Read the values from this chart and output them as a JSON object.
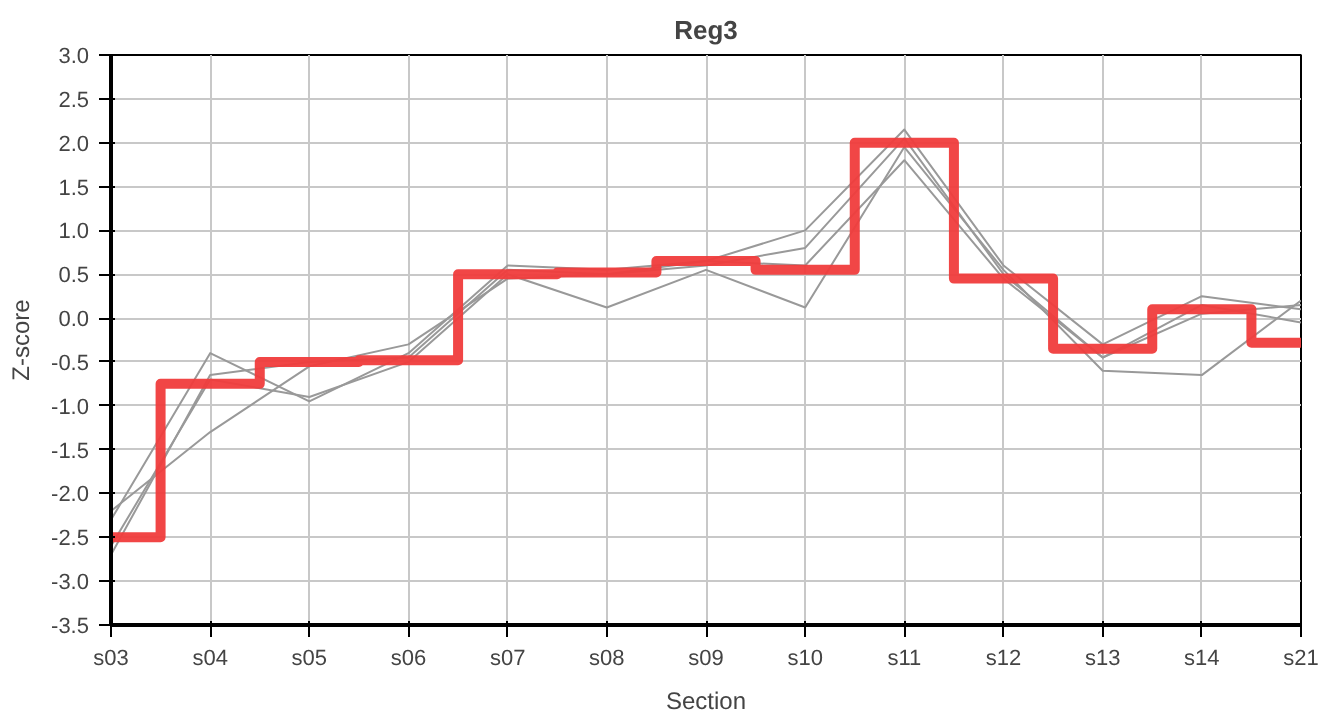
{
  "chart_data": {
    "type": "line",
    "title": "Reg3",
    "xlabel": "Section",
    "ylabel": "Z-score",
    "categories": [
      "s03",
      "s04",
      "s05",
      "s06",
      "s07",
      "s08",
      "s09",
      "s10",
      "s11",
      "s12",
      "s13",
      "s14",
      "s21"
    ],
    "ylim": [
      -3.5,
      3.0
    ],
    "yticks": [
      {
        "value": -3.5,
        "label": "-3.5"
      },
      {
        "value": -3,
        "label": "-3.0"
      },
      {
        "value": -2.5,
        "label": "-2.5"
      },
      {
        "value": -2,
        "label": "-2.0"
      },
      {
        "value": -1.5,
        "label": "-1.5"
      },
      {
        "value": -1,
        "label": "-1.0"
      },
      {
        "value": -0.5,
        "label": "-0.5"
      },
      {
        "value": 0,
        "label": "0.0"
      },
      {
        "value": 0.5,
        "label": "0.5"
      },
      {
        "value": 1,
        "label": "1.0"
      },
      {
        "value": 1.5,
        "label": "1.5"
      },
      {
        "value": 2,
        "label": "2.0"
      },
      {
        "value": 2.5,
        "label": "2.5"
      },
      {
        "value": 3,
        "label": "3.0"
      }
    ],
    "grid": true,
    "series": [
      {
        "color": "#999999",
        "values": [
          -2.3,
          -0.4,
          -0.95,
          -0.4,
          0.6,
          0.55,
          0.65,
          1.0,
          2.15,
          0.6,
          -0.3,
          0.25,
          0.1
        ]
      },
      {
        "color": "#999999",
        "values": [
          -2.6,
          -0.7,
          -0.9,
          -0.5,
          0.5,
          0.12,
          0.55,
          0.12,
          1.95,
          0.55,
          -0.6,
          -0.65,
          0.2
        ]
      },
      {
        "color": "#999999",
        "values": [
          -2.7,
          -0.65,
          -0.5,
          -0.45,
          0.55,
          0.5,
          0.6,
          0.8,
          2.05,
          0.5,
          -0.45,
          0.05,
          0.15
        ]
      },
      {
        "color": "#999999",
        "values": [
          -2.2,
          -1.3,
          -0.55,
          -0.3,
          0.45,
          0.5,
          0.65,
          0.6,
          1.8,
          0.45,
          -0.45,
          0.15,
          -0.05
        ]
      },
      {
        "type": "step",
        "color": "#f03c3c",
        "values": [
          -2.5,
          -0.75,
          -0.5,
          -0.48,
          0.5,
          0.52,
          0.65,
          0.55,
          2.0,
          0.45,
          -0.35,
          0.1,
          -0.28
        ]
      }
    ]
  }
}
